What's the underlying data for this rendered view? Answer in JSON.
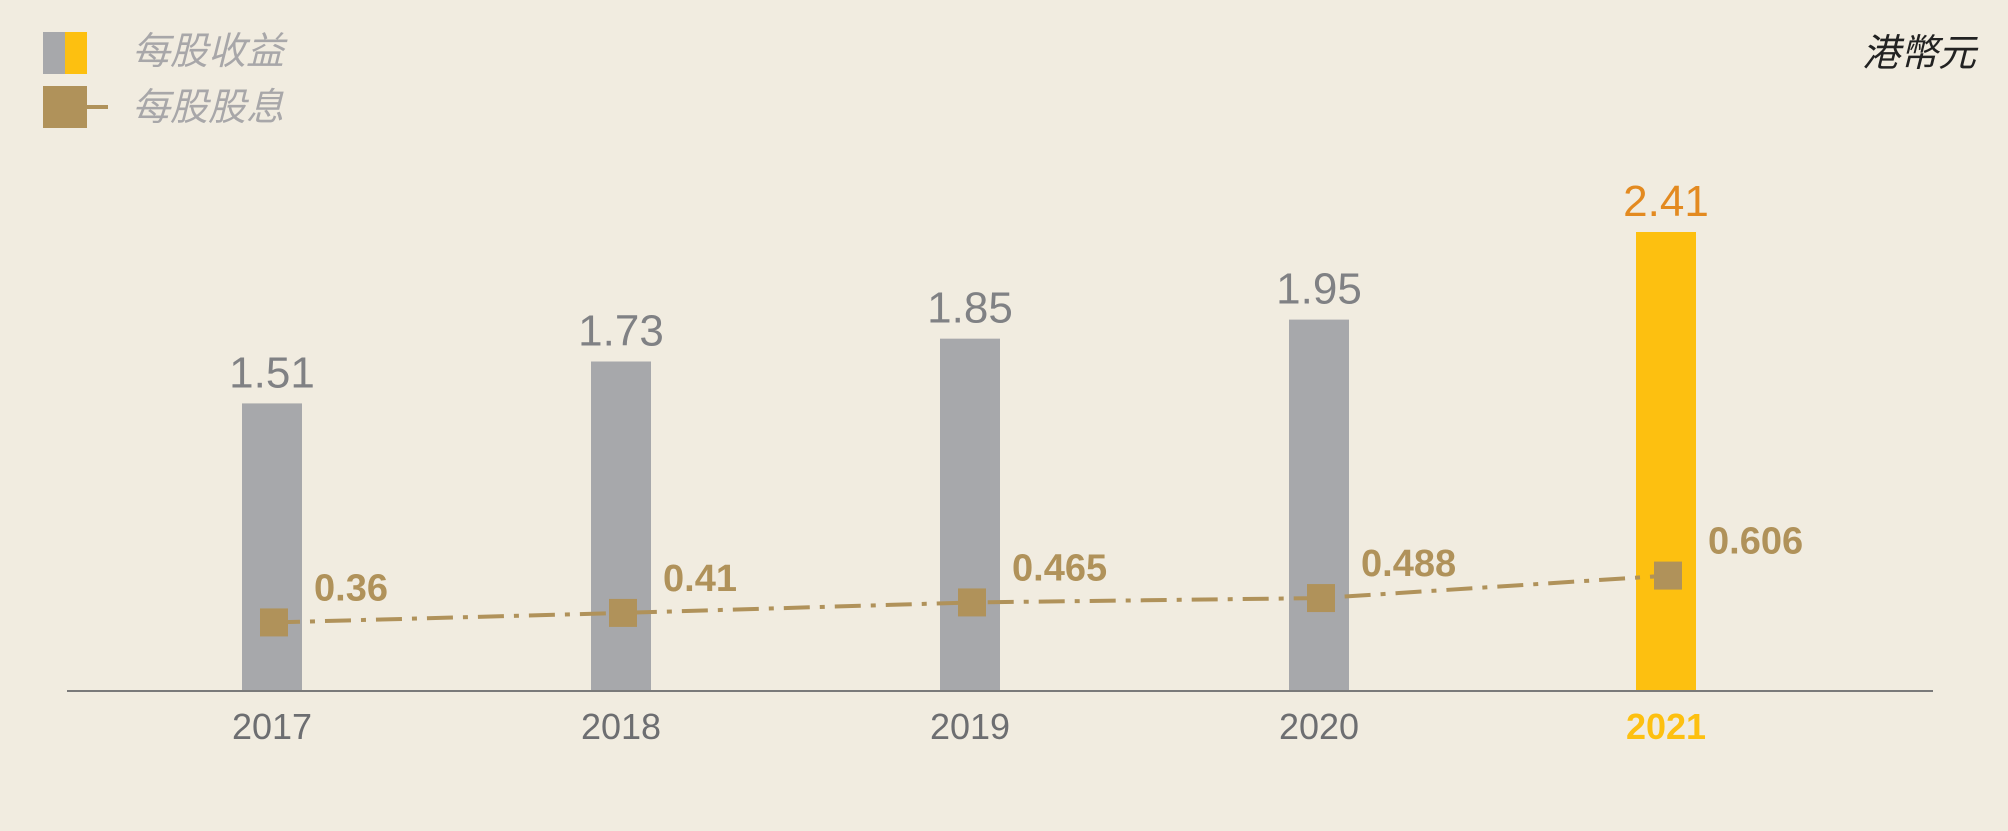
{
  "legend": {
    "eps_label": "每股收益",
    "dps_label": "每股股息"
  },
  "unit": "港幣元",
  "colors": {
    "background": "#f1ece0",
    "bar_gray": "#a7a8ab",
    "bar_highlight": "#fdc010",
    "dividend": "#b0925a",
    "label_gray": "#808184",
    "label_highlight": "#e38a20",
    "axis": "#7a7a7a"
  },
  "chart_data": {
    "type": "bar",
    "categories": [
      "2017",
      "2018",
      "2019",
      "2020",
      "2021"
    ],
    "highlight_category": "2021",
    "series": [
      {
        "name": "每股收益",
        "type": "bar",
        "values": [
          1.51,
          1.73,
          1.85,
          1.95,
          2.41
        ],
        "labels": [
          "1.51",
          "1.73",
          "1.85",
          "1.95",
          "2.41"
        ]
      },
      {
        "name": "每股股息",
        "type": "line",
        "values": [
          0.36,
          0.41,
          0.465,
          0.488,
          0.606
        ],
        "labels": [
          "0.36",
          "0.41",
          "0.465",
          "0.488",
          "0.606"
        ]
      }
    ],
    "ylim": [
      0,
      2.41
    ],
    "grid": false,
    "legend_position": "top-left"
  }
}
